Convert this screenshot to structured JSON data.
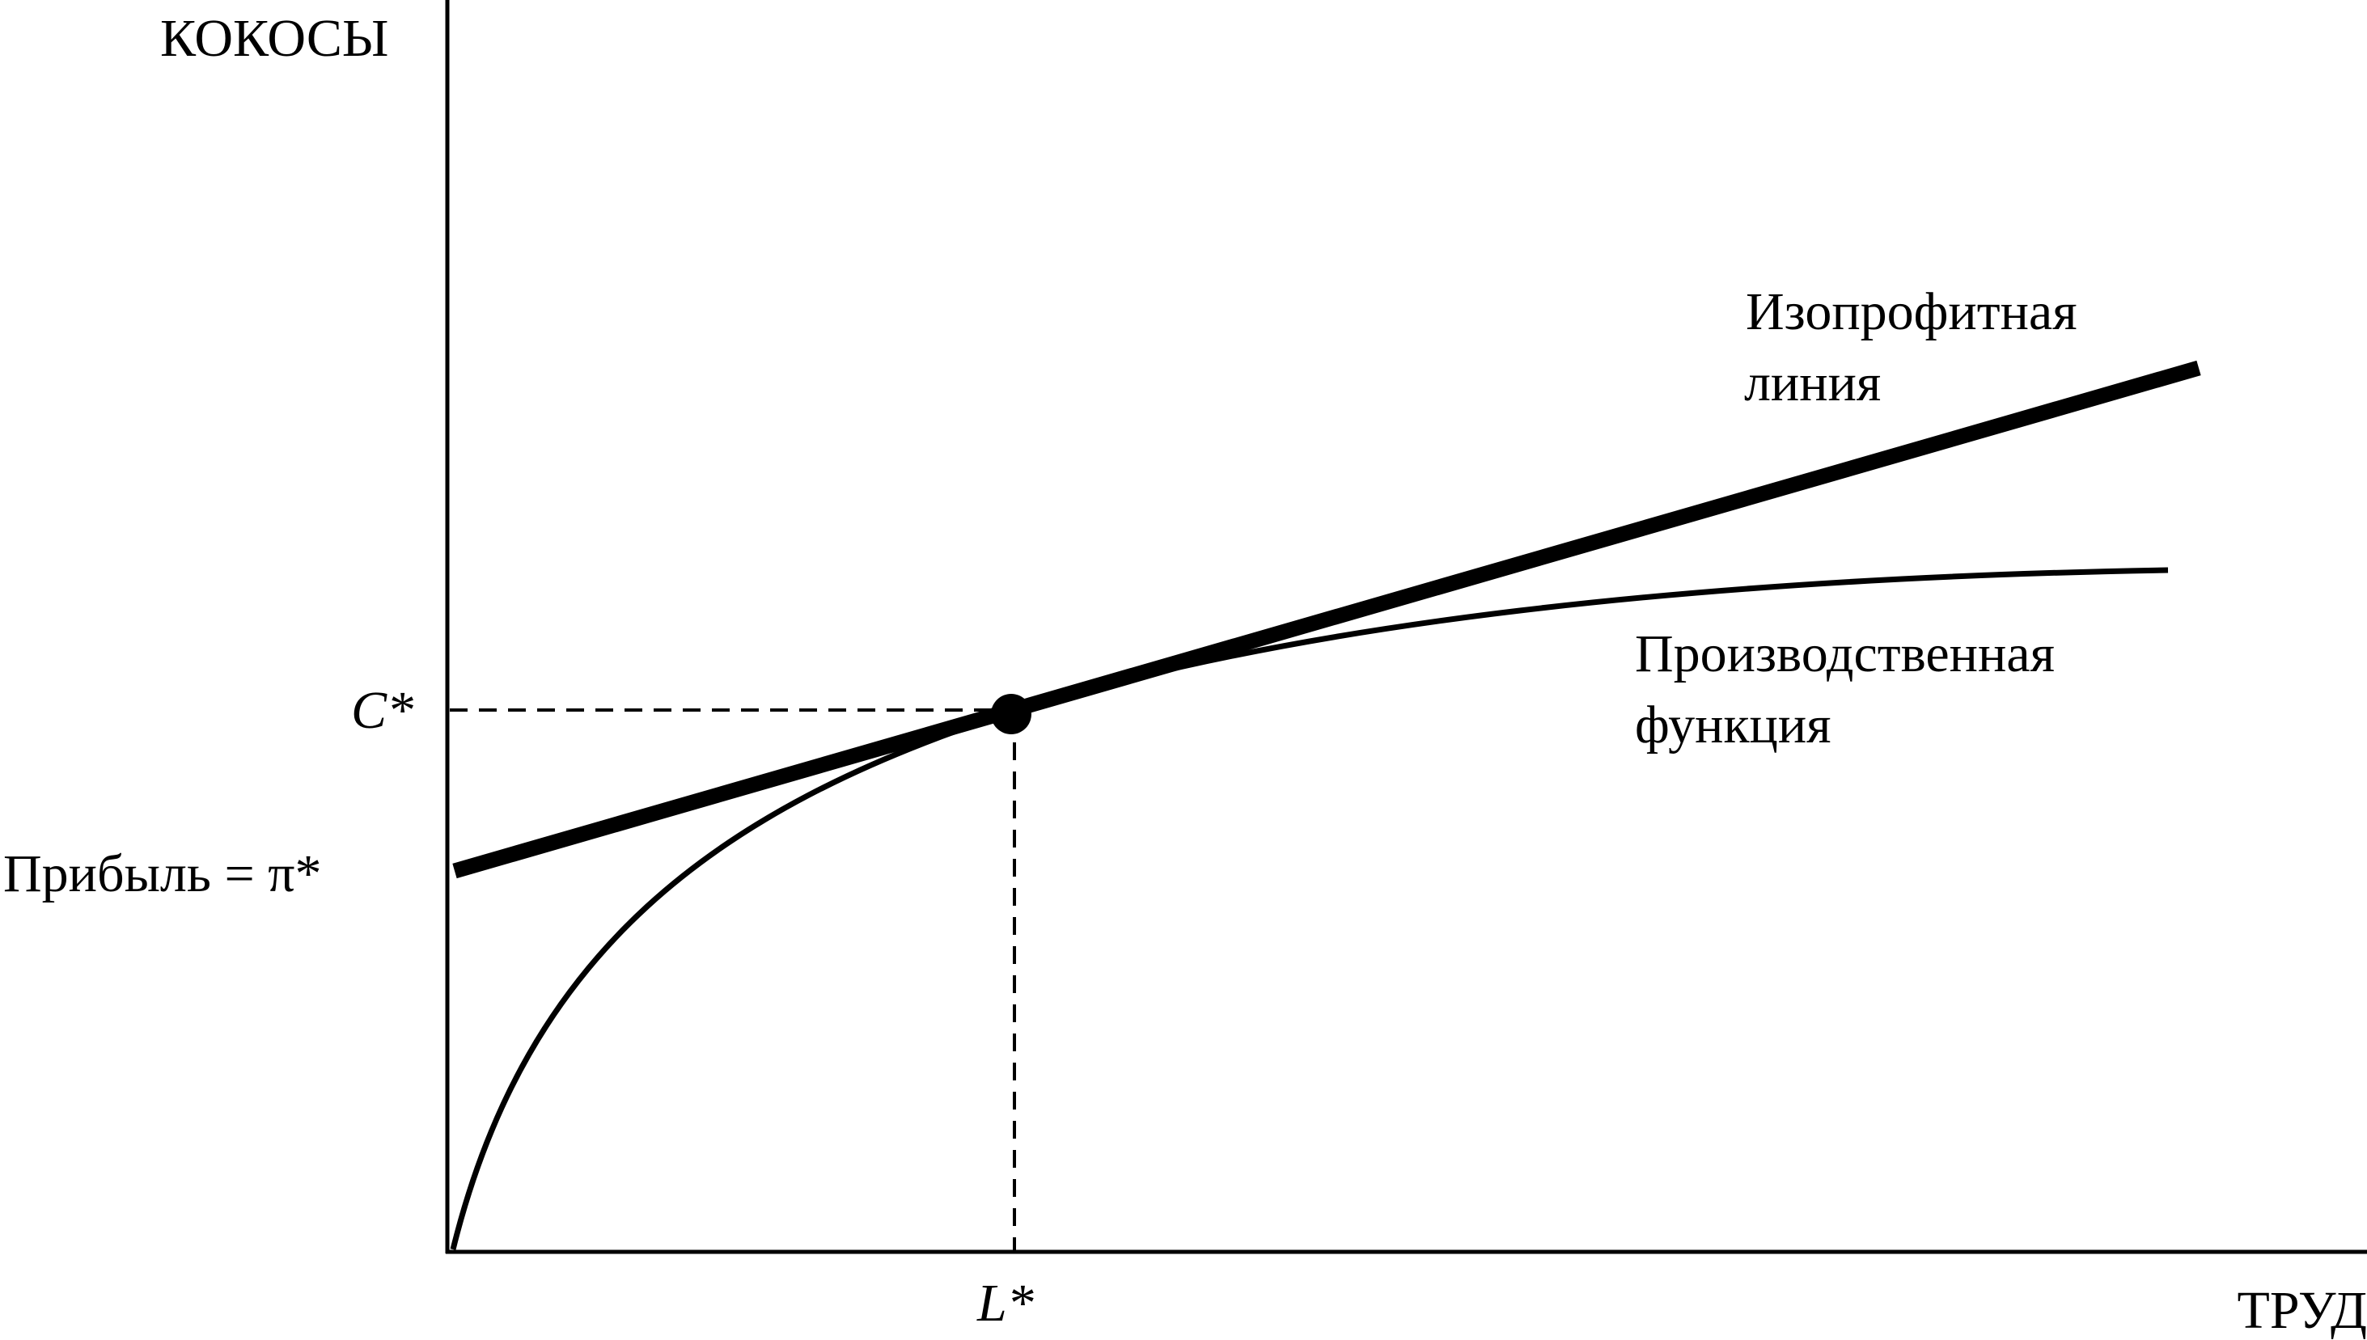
{
  "axes": {
    "y_label": "КОКОСЫ",
    "x_label": "ТРУД"
  },
  "marks": {
    "c_star": "C*",
    "l_star": "L*",
    "profit_label": "Прибыль = π*"
  },
  "curves": {
    "isoprofit_line": [
      "Изопрофитная",
      "линия"
    ],
    "production_function": [
      "Производственная",
      "функция"
    ]
  },
  "colors": {
    "ink": "#000000",
    "background": "#ffffff"
  }
}
